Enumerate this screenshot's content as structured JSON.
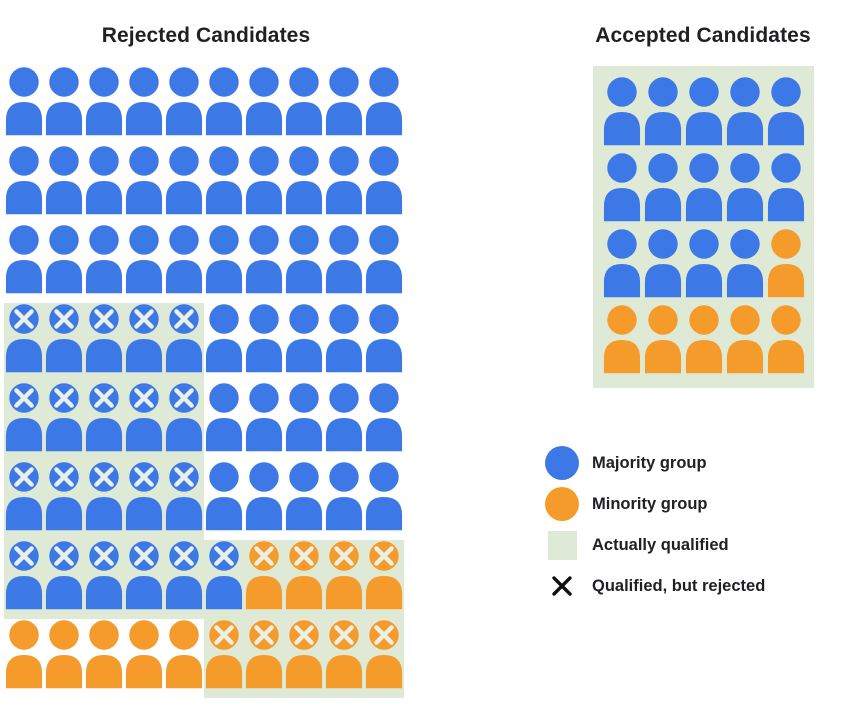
{
  "colors": {
    "majority_blue": "#3D79E6",
    "minority_orange": "#F59B2B",
    "qualified_green": "#DFEAD6",
    "x_on_person": "#EAF0E5",
    "x_legend": "#111111"
  },
  "rejected": {
    "title": "Rejected Candidates",
    "rows": [
      [
        "b",
        "b",
        "b",
        "b",
        "b",
        "b",
        "b",
        "b",
        "b",
        "b"
      ],
      [
        "b",
        "b",
        "b",
        "b",
        "b",
        "b",
        "b",
        "b",
        "b",
        "b"
      ],
      [
        "b",
        "b",
        "b",
        "b",
        "b",
        "b",
        "b",
        "b",
        "b",
        "b"
      ],
      [
        "bxq",
        "bxq",
        "bxq",
        "bxq",
        "bxq",
        "b",
        "b",
        "b",
        "b",
        "b"
      ],
      [
        "bxq",
        "bxq",
        "bxq",
        "bxq",
        "bxq",
        "b",
        "b",
        "b",
        "b",
        "b"
      ],
      [
        "bxq",
        "bxq",
        "bxq",
        "bxq",
        "bxq",
        "b",
        "b",
        "b",
        "b",
        "b"
      ],
      [
        "bxq",
        "bxq",
        "bxq",
        "bxq",
        "bxq",
        "bxq",
        "oxq",
        "oxq",
        "oxq",
        "oxq"
      ],
      [
        "o",
        "o",
        "o",
        "o",
        "o",
        "oxq",
        "oxq",
        "oxq",
        "oxq",
        "oxq"
      ]
    ]
  },
  "accepted": {
    "title": "Accepted Candidates",
    "rows": [
      [
        "b",
        "b",
        "b",
        "b",
        "b"
      ],
      [
        "b",
        "b",
        "b",
        "b",
        "b"
      ],
      [
        "b",
        "b",
        "b",
        "b",
        "o"
      ],
      [
        "o",
        "o",
        "o",
        "o",
        "o"
      ]
    ]
  },
  "legend": {
    "items": [
      {
        "swatch": "majority-circle",
        "label": "Majority group"
      },
      {
        "swatch": "minority-circle",
        "label": "Minority group"
      },
      {
        "swatch": "qualified-square",
        "label": "Actually qualified"
      },
      {
        "swatch": "x-mark",
        "label": "Qualified, but rejected"
      }
    ]
  }
}
